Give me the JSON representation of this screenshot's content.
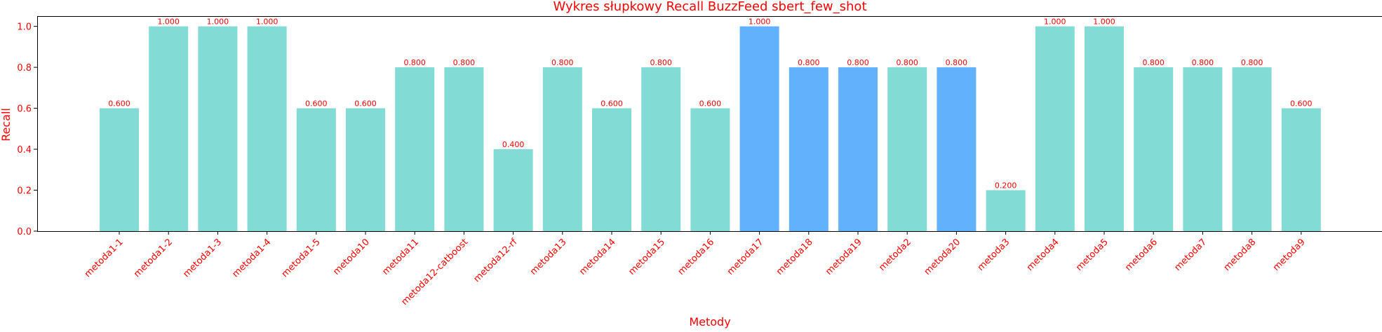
{
  "chart_data": {
    "type": "bar",
    "title": "Wykres słupkowy Recall BuzzFeed sbert_few_shot",
    "xlabel": "Metody",
    "ylabel": "Recall",
    "ylim": [
      0,
      1.05
    ],
    "yticks": [
      "0.0",
      "0.2",
      "0.4",
      "0.6",
      "0.8",
      "1.0"
    ],
    "grid": false,
    "legend": "none",
    "categories": [
      "metoda1-1",
      "metoda1-2",
      "metoda1-3",
      "metoda1-4",
      "metoda1-5",
      "metoda10",
      "metoda11",
      "metoda12-catboost",
      "metoda12-rf",
      "metoda13",
      "metoda14",
      "metoda15",
      "metoda16",
      "metoda17",
      "metoda18",
      "metoda19",
      "metoda2",
      "metoda20",
      "metoda3",
      "metoda4",
      "metoda5",
      "metoda6",
      "metoda7",
      "metoda8",
      "metoda9"
    ],
    "values": [
      0.6,
      1.0,
      1.0,
      1.0,
      0.6,
      0.6,
      0.8,
      0.8,
      0.4,
      0.8,
      0.6,
      0.8,
      0.6,
      1.0,
      0.8,
      0.8,
      0.8,
      0.8,
      0.2,
      1.0,
      1.0,
      0.8,
      0.8,
      0.8,
      0.6
    ],
    "value_labels": [
      "0.600",
      "1.000",
      "1.000",
      "1.000",
      "0.600",
      "0.600",
      "0.800",
      "0.800",
      "0.400",
      "0.800",
      "0.600",
      "0.800",
      "0.600",
      "1.000",
      "0.800",
      "0.800",
      "0.800",
      "0.800",
      "0.200",
      "1.000",
      "1.000",
      "0.800",
      "0.800",
      "0.800",
      "0.600"
    ],
    "highlighted": [
      false,
      false,
      false,
      false,
      false,
      false,
      false,
      false,
      false,
      false,
      false,
      false,
      false,
      true,
      true,
      true,
      false,
      true,
      false,
      false,
      false,
      false,
      false,
      false,
      false
    ]
  },
  "colors": {
    "text": "#ff0000",
    "bar": "#82dbd5",
    "bar_highlight": "#61b1fd",
    "axis": "#000000"
  }
}
